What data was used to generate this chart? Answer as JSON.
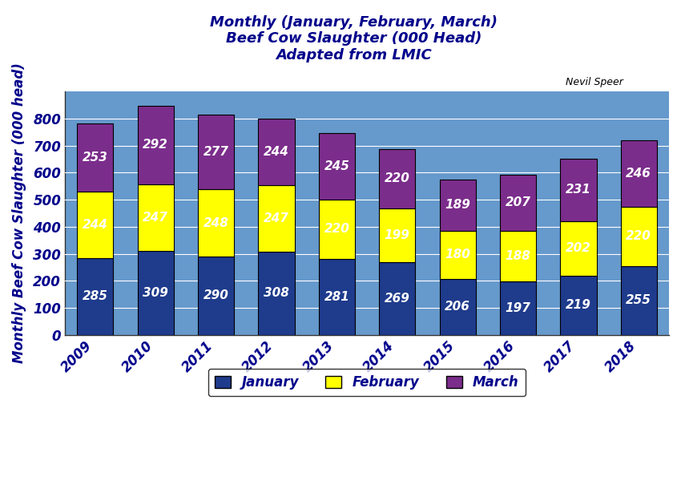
{
  "years": [
    "2009",
    "2010",
    "2011",
    "2012",
    "2013",
    "2014",
    "2015",
    "2016",
    "2017",
    "2018"
  ],
  "january": [
    285,
    309,
    290,
    308,
    281,
    269,
    206,
    197,
    219,
    255
  ],
  "february": [
    244,
    247,
    248,
    247,
    220,
    199,
    180,
    188,
    202,
    220
  ],
  "march": [
    253,
    292,
    277,
    244,
    245,
    220,
    189,
    207,
    231,
    246
  ],
  "january_color": "#1F3B8C",
  "february_color": "#FFFF00",
  "march_color": "#7B2D8B",
  "bar_edge_color": "#000000",
  "background_color": "#6699CC",
  "fig_background_color": "#FFFFFF",
  "title_line1": "Monthly (January, February, March)",
  "title_line2": "Beef Cow Slaughter (000 Head)",
  "title_line3": "Adapted from LMIC",
  "title_color": "#00008B",
  "ylabel": "Monthly Beef Cow Slaughter (000 head)",
  "watermark": "Nevil Speer",
  "ylim": [
    0,
    900
  ],
  "yticks": [
    0,
    100,
    200,
    300,
    400,
    500,
    600,
    700,
    800
  ],
  "bar_width": 0.6,
  "value_fontsize": 11,
  "value_color": "white",
  "legend_labels": [
    "January",
    "February",
    "March"
  ],
  "axis_label_color": "#00008B",
  "tick_label_color": "#00008B",
  "grid_color": "#AABBDD",
  "grid_linewidth": 0.8
}
